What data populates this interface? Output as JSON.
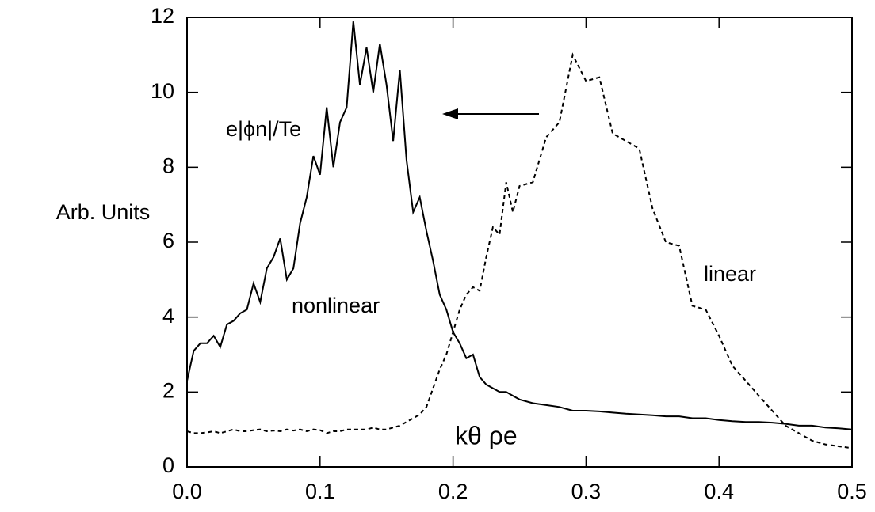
{
  "chart_data": {
    "type": "line",
    "y_label": "Arb. Units",
    "annotations": [
      "e|ϕn|/Te",
      "nonlinear",
      "linear",
      "kθ ρe"
    ],
    "x": [
      0,
      0.005,
      0.01,
      0.015,
      0.02,
      0.025,
      0.03,
      0.035,
      0.04,
      0.045,
      0.05,
      0.055,
      0.06,
      0.065,
      0.07,
      0.075,
      0.08,
      0.085,
      0.09,
      0.095,
      0.1,
      0.105,
      0.11,
      0.115,
      0.12,
      0.125,
      0.13,
      0.135,
      0.14,
      0.145,
      0.15,
      0.155,
      0.16,
      0.165,
      0.17,
      0.175,
      0.18,
      0.185,
      0.19,
      0.195,
      0.2,
      0.205,
      0.21,
      0.215,
      0.22,
      0.225,
      0.23,
      0.235,
      0.24,
      0.245,
      0.25,
      0.26,
      0.27,
      0.28,
      0.29,
      0.3,
      0.31,
      0.32,
      0.33,
      0.34,
      0.35,
      0.36,
      0.37,
      0.38,
      0.39,
      0.4,
      0.41,
      0.42,
      0.43,
      0.44,
      0.45,
      0.46,
      0.47,
      0.48,
      0.49,
      0.5
    ],
    "series": [
      {
        "color": "#000000",
        "line_style": "solid",
        "values": [
          2.3,
          3.1,
          3.3,
          3.3,
          3.5,
          3.2,
          3.8,
          3.9,
          4.1,
          4.2,
          4.9,
          4.4,
          5.3,
          5.6,
          6.1,
          5.0,
          5.3,
          6.5,
          7.2,
          8.3,
          7.8,
          9.6,
          8.0,
          9.2,
          9.6,
          11.9,
          10.2,
          11.2,
          10.0,
          11.3,
          10.2,
          8.7,
          10.6,
          8.2,
          6.8,
          7.2,
          6.3,
          5.5,
          4.6,
          4.2,
          3.6,
          3.3,
          2.9,
          3.0,
          2.4,
          2.2,
          2.1,
          2.0,
          2.0,
          1.9,
          1.8,
          1.7,
          1.65,
          1.6,
          1.5,
          1.5,
          1.48,
          1.45,
          1.42,
          1.4,
          1.38,
          1.35,
          1.35,
          1.3,
          1.3,
          1.25,
          1.22,
          1.2,
          1.2,
          1.18,
          1.15,
          1.1,
          1.1,
          1.05,
          1.03,
          1.0
        ]
      },
      {
        "color": "#000000",
        "line_style": "dashed",
        "values": [
          0.95,
          0.9,
          0.9,
          0.92,
          0.95,
          0.9,
          0.95,
          1.0,
          0.95,
          0.95,
          0.98,
          1.0,
          0.95,
          0.97,
          0.95,
          1.0,
          0.97,
          1.0,
          0.95,
          1.0,
          0.98,
          0.9,
          0.95,
          0.95,
          1.0,
          1.0,
          1.0,
          1.0,
          1.05,
          1.0,
          1.0,
          1.05,
          1.1,
          1.2,
          1.3,
          1.4,
          1.6,
          2.1,
          2.6,
          3.0,
          3.6,
          4.2,
          4.6,
          4.8,
          4.7,
          5.6,
          6.4,
          6.2,
          7.6,
          6.8,
          7.5,
          7.6,
          8.8,
          9.2,
          11.0,
          10.3,
          10.4,
          8.9,
          8.7,
          8.5,
          6.9,
          6.0,
          5.9,
          4.3,
          4.2,
          3.5,
          2.7,
          2.3,
          1.9,
          1.5,
          1.1,
          0.9,
          0.7,
          0.6,
          0.55,
          0.5
        ]
      }
    ],
    "xlim": [
      0,
      0.5
    ],
    "ylim": [
      0,
      12
    ],
    "xticks": [
      {
        "value": 0,
        "label": "0.0"
      },
      0.1,
      0.2,
      0.3,
      0.4,
      0.5
    ],
    "yticks": [
      0,
      2,
      4,
      6,
      8,
      10,
      12
    ]
  }
}
